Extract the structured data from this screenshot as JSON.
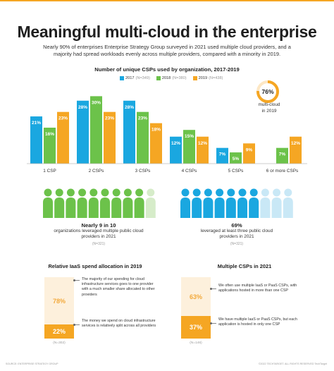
{
  "header": {
    "title": "Meaningful multi-cloud in the enterprise",
    "subtitle": "Nearly 90% of enterprises Enterprise Strategy Group surveyed in 2021 used multiple cloud providers, and a majority had spread workloads evenly across multiple providers, compared with a minority in 2019."
  },
  "chart_data": [
    {
      "type": "bar",
      "title": "Number of unique CSPs used by organization, 2017-2019",
      "categories": [
        "1 CSP",
        "2 CSPs",
        "3 CSPs",
        "4 CSPs",
        "5 CSPs",
        "6 or more CSPs"
      ],
      "series": [
        {
          "name": "2017",
          "n": "(N=349)",
          "color": "#1aa7e0",
          "values": [
            21,
            28,
            28,
            12,
            7,
            null
          ],
          "labels": [
            "21%",
            "28%",
            "28%",
            "12%",
            "7%",
            ""
          ]
        },
        {
          "name": "2018",
          "n": "(N=380)",
          "color": "#6cc24a",
          "values": [
            16,
            30,
            23,
            15,
            5,
            7
          ],
          "labels": [
            "16%",
            "30%",
            "23%",
            "15%",
            "5%",
            "7%"
          ]
        },
        {
          "name": "2019",
          "n": "(N=438)",
          "color": "#f5a623",
          "values": [
            23,
            23,
            18,
            12,
            9,
            12
          ],
          "labels": [
            "23%",
            "23%",
            "18%",
            "12%",
            "9%",
            "12%"
          ]
        }
      ],
      "ylim": [
        0,
        32
      ]
    },
    {
      "type": "pie",
      "values": [
        76,
        24
      ],
      "center_label": "76%",
      "caption": "multi-cloud in 2019",
      "colors": [
        "#f5a623",
        "#fde7c4"
      ]
    },
    {
      "type": "bar",
      "title": "Relative IaaS spend allocation in 2019",
      "categories": [
        "The majority of our spending for cloud infrastructure services goes to one provider with a much smaller share allocated to other providers",
        "The money we spend on cloud infrastructure services is relatively split across all providers"
      ],
      "values": [
        78,
        22
      ],
      "labels": [
        "78%",
        "22%"
      ],
      "n": "(N=302)"
    },
    {
      "type": "bar",
      "title": "Multiple CSPs in 2021",
      "categories": [
        "We often use multiple IaaS or PaaS CSPs, with applications hosted in more than one CSP",
        "We have multiple IaaS or PaaS CSPs, but each application is hosted in only one CSP"
      ],
      "values": [
        63,
        37
      ],
      "labels": [
        "63%",
        "37%"
      ],
      "n": "(N=146)"
    }
  ],
  "ring": {
    "label_line1": "multi-cloud",
    "label_line2": "in 2019"
  },
  "people": {
    "left": {
      "total": 10,
      "highlighted": 9,
      "color": "#6cc24a",
      "muted": "#d6ecc9",
      "big": "Nearly 9 in 10",
      "line1": "organizations leveraged multiple public cloud",
      "line2": "providers in 2021",
      "note": "(N=321)"
    },
    "right": {
      "total": 10,
      "highlighted": 7,
      "color": "#1aa7e0",
      "muted": "#c9e8f6",
      "big": "69%",
      "line1": "leveraged at least three public cloud",
      "line2": "providers in 2021",
      "note": "(N=321)"
    }
  },
  "footer": {
    "source": "SOURCE: ENTERPRISE STRATEGY GROUP",
    "rights": "©2022 TECHTARGET. ALL RIGHTS RESERVED  TechTarget"
  }
}
